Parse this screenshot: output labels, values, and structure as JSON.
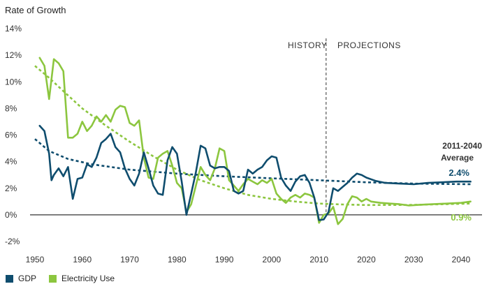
{
  "chart_data": {
    "type": "line",
    "ylabel": "Rate of Growth",
    "ylim": [
      -2,
      14
    ],
    "xlim": [
      1949,
      2043
    ],
    "yticks": [
      "-2%",
      "0%",
      "2%",
      "4%",
      "6%",
      "8%",
      "10%",
      "12%",
      "14%"
    ],
    "xticks": [
      "1950",
      "1960",
      "1970",
      "1980",
      "1990",
      "2000",
      "2010",
      "2020",
      "2030",
      "2040"
    ],
    "annotations": {
      "history": "HISTORY",
      "projections": "PROJECTIONS",
      "divider_year": 2011.5,
      "avg_title_1": "2011-2040",
      "avg_title_2": "Average",
      "gdp_avg": "2.4%",
      "elec_avg": "0.9%"
    },
    "legend_position": "bottom-left",
    "colors": {
      "gdp": "#0f4d6e",
      "electricity": "#8cc63f",
      "zero_line": "#333333"
    },
    "series": [
      {
        "name": "GDP",
        "points": [
          [
            1951,
            6.7
          ],
          [
            1952,
            6.3
          ],
          [
            1953,
            4.6
          ],
          [
            1953.5,
            2.6
          ],
          [
            1954,
            3.0
          ],
          [
            1955,
            3.5
          ],
          [
            1956,
            2.9
          ],
          [
            1957,
            3.6
          ],
          [
            1958,
            1.2
          ],
          [
            1959,
            2.7
          ],
          [
            1960,
            2.8
          ],
          [
            1961,
            3.8
          ],
          [
            1962,
            3.6
          ],
          [
            1963,
            4.3
          ],
          [
            1964,
            5.4
          ],
          [
            1965,
            5.7
          ],
          [
            1966,
            6.1
          ],
          [
            1967,
            5.1
          ],
          [
            1968,
            4.7
          ],
          [
            1969,
            3.5
          ],
          [
            1970,
            2.7
          ],
          [
            1971,
            2.2
          ],
          [
            1972,
            3.1
          ],
          [
            1973,
            4.7
          ],
          [
            1974,
            3.5
          ],
          [
            1975,
            2.2
          ],
          [
            1976,
            1.6
          ],
          [
            1977,
            1.5
          ],
          [
            1978,
            4.1
          ],
          [
            1979,
            5.1
          ],
          [
            1980,
            4.6
          ],
          [
            1981,
            2.5
          ],
          [
            1982,
            0.0
          ],
          [
            1983,
            1.6
          ],
          [
            1984,
            3.2
          ],
          [
            1985,
            5.2
          ],
          [
            1986,
            5.0
          ],
          [
            1987,
            3.7
          ],
          [
            1988,
            3.5
          ],
          [
            1989,
            3.6
          ],
          [
            1990,
            3.6
          ],
          [
            1991,
            3.3
          ],
          [
            1992,
            1.8
          ],
          [
            1993,
            1.6
          ],
          [
            1994,
            1.8
          ],
          [
            1995,
            3.4
          ],
          [
            1996,
            3.1
          ],
          [
            1997,
            3.4
          ],
          [
            1998,
            3.6
          ],
          [
            1999,
            4.1
          ],
          [
            2000,
            4.4
          ],
          [
            2001,
            4.3
          ],
          [
            2002,
            2.8
          ],
          [
            2003,
            2.2
          ],
          [
            2004,
            1.8
          ],
          [
            2005,
            2.5
          ],
          [
            2006,
            2.9
          ],
          [
            2007,
            3.0
          ],
          [
            2008,
            2.4
          ],
          [
            2009,
            1.3
          ],
          [
            2010,
            -0.4
          ],
          [
            2011,
            -0.35
          ],
          [
            2012,
            0.2
          ],
          [
            2013,
            2.0
          ],
          [
            2014,
            1.8
          ],
          [
            2015,
            2.1
          ],
          [
            2016,
            2.4
          ],
          [
            2017,
            2.8
          ],
          [
            2018,
            3.1
          ],
          [
            2019,
            3.0
          ],
          [
            2020,
            2.8
          ],
          [
            2022,
            2.55
          ],
          [
            2024,
            2.4
          ],
          [
            2027,
            2.35
          ],
          [
            2030,
            2.3
          ],
          [
            2033,
            2.4
          ],
          [
            2036,
            2.45
          ],
          [
            2039,
            2.5
          ],
          [
            2042,
            2.5
          ]
        ]
      },
      {
        "name": "Electricity Use",
        "points": [
          [
            1951,
            11.8
          ],
          [
            1952,
            11.2
          ],
          [
            1953,
            8.7
          ],
          [
            1954,
            11.7
          ],
          [
            1955,
            11.4
          ],
          [
            1956,
            10.8
          ],
          [
            1957,
            5.8
          ],
          [
            1958,
            5.8
          ],
          [
            1959,
            6.1
          ],
          [
            1960,
            7.0
          ],
          [
            1961,
            6.3
          ],
          [
            1962,
            6.7
          ],
          [
            1963,
            7.4
          ],
          [
            1964,
            7.0
          ],
          [
            1965,
            7.5
          ],
          [
            1966,
            7.0
          ],
          [
            1967,
            7.9
          ],
          [
            1968,
            8.2
          ],
          [
            1969,
            8.1
          ],
          [
            1970,
            6.9
          ],
          [
            1971,
            6.7
          ],
          [
            1972,
            7.1
          ],
          [
            1973,
            4.3
          ],
          [
            1974,
            2.8
          ],
          [
            1975,
            2.7
          ],
          [
            1976,
            4.3
          ],
          [
            1977,
            4.6
          ],
          [
            1978,
            4.8
          ],
          [
            1979,
            3.7
          ],
          [
            1980,
            2.4
          ],
          [
            1981,
            2.0
          ],
          [
            1982,
            0.2
          ],
          [
            1983,
            0.8
          ],
          [
            1984,
            2.2
          ],
          [
            1985,
            3.6
          ],
          [
            1986,
            3.0
          ],
          [
            1987,
            2.6
          ],
          [
            1988,
            3.5
          ],
          [
            1989,
            5.0
          ],
          [
            1990,
            4.8
          ],
          [
            1991,
            2.6
          ],
          [
            1992,
            2.2
          ],
          [
            1993,
            1.8
          ],
          [
            1994,
            2.3
          ],
          [
            1995,
            2.7
          ],
          [
            1996,
            2.5
          ],
          [
            1997,
            2.3
          ],
          [
            1998,
            2.6
          ],
          [
            1999,
            2.4
          ],
          [
            2000,
            2.7
          ],
          [
            2001,
            1.6
          ],
          [
            2002,
            1.2
          ],
          [
            2003,
            0.9
          ],
          [
            2004,
            1.3
          ],
          [
            2005,
            1.5
          ],
          [
            2006,
            1.3
          ],
          [
            2007,
            1.6
          ],
          [
            2008,
            1.5
          ],
          [
            2009,
            1.3
          ],
          [
            2010,
            -0.6
          ],
          [
            2011,
            0.0
          ],
          [
            2012,
            0.1
          ],
          [
            2013,
            0.6
          ],
          [
            2014,
            -0.7
          ],
          [
            2015,
            -0.3
          ],
          [
            2016,
            0.8
          ],
          [
            2017,
            1.4
          ],
          [
            2018,
            1.3
          ],
          [
            2019,
            1.0
          ],
          [
            2020,
            1.2
          ],
          [
            2021,
            1.0
          ],
          [
            2023,
            0.9
          ],
          [
            2025,
            0.85
          ],
          [
            2027,
            0.8
          ],
          [
            2029,
            0.7
          ],
          [
            2031,
            0.75
          ],
          [
            2034,
            0.8
          ],
          [
            2037,
            0.85
          ],
          [
            2040,
            0.9
          ],
          [
            2042,
            1.0
          ]
        ]
      }
    ],
    "trend_lines": [
      {
        "name": "GDP trend",
        "points": [
          [
            1950,
            5.7
          ],
          [
            1953,
            4.8
          ],
          [
            1957,
            4.2
          ],
          [
            1962,
            3.8
          ],
          [
            1970,
            3.4
          ],
          [
            1980,
            3.1
          ],
          [
            1990,
            2.9
          ],
          [
            2000,
            2.75
          ],
          [
            2010,
            2.6
          ],
          [
            2020,
            2.45
          ],
          [
            2030,
            2.35
          ],
          [
            2042,
            2.3
          ]
        ]
      },
      {
        "name": "Electricity trend",
        "points": [
          [
            1950,
            11.2
          ],
          [
            1953,
            10.3
          ],
          [
            1956,
            9.3
          ],
          [
            1960,
            8.0
          ],
          [
            1965,
            6.7
          ],
          [
            1970,
            5.5
          ],
          [
            1975,
            4.4
          ],
          [
            1980,
            3.4
          ],
          [
            1985,
            2.6
          ],
          [
            1990,
            2.0
          ],
          [
            1995,
            1.5
          ],
          [
            2000,
            1.2
          ],
          [
            2005,
            1.0
          ],
          [
            2010,
            0.85
          ],
          [
            2015,
            0.78
          ],
          [
            2020,
            0.74
          ],
          [
            2030,
            0.75
          ],
          [
            2042,
            0.85
          ]
        ]
      }
    ]
  },
  "legend": [
    {
      "label": "GDP",
      "color": "#0f4d6e"
    },
    {
      "label": "Electricity Use",
      "color": "#8cc63f"
    }
  ]
}
